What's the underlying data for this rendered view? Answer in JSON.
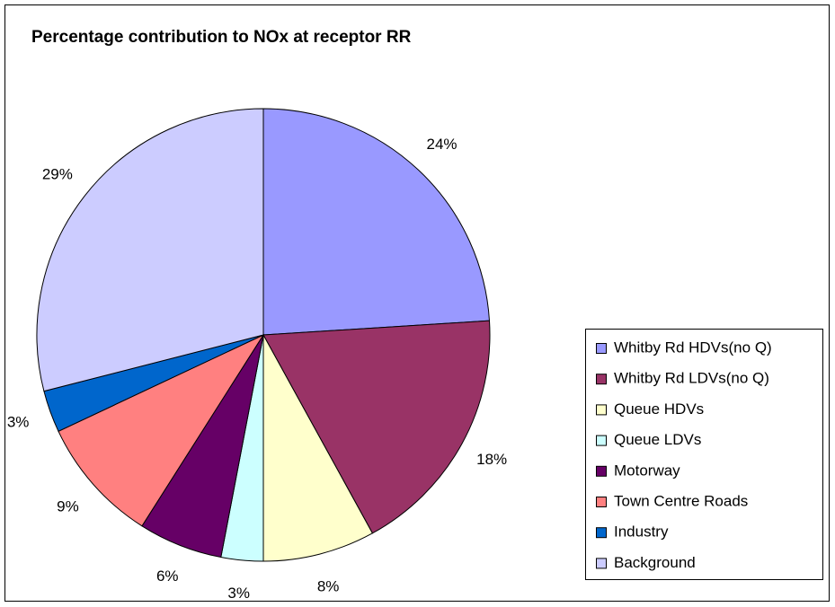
{
  "chart_data": {
    "type": "pie",
    "title": "Percentage contribution to NOx at receptor RR",
    "categories": [
      "Whitby Rd HDVs(no Q)",
      "Whitby Rd LDVs(no Q)",
      "Queue HDVs",
      "Queue LDVs",
      "Motorway",
      "Town Centre Roads",
      "Industry",
      "Background"
    ],
    "values": [
      24,
      18,
      8,
      3,
      6,
      9,
      3,
      29
    ],
    "value_labels": [
      "24%",
      "18%",
      "8%",
      "3%",
      "6%",
      "9%",
      "3%",
      "29%"
    ],
    "colors": [
      "#9999ff",
      "#993366",
      "#ffffcc",
      "#ccffff",
      "#660066",
      "#ff8080",
      "#0066cc",
      "#ccccff"
    ],
    "legend": "right"
  }
}
